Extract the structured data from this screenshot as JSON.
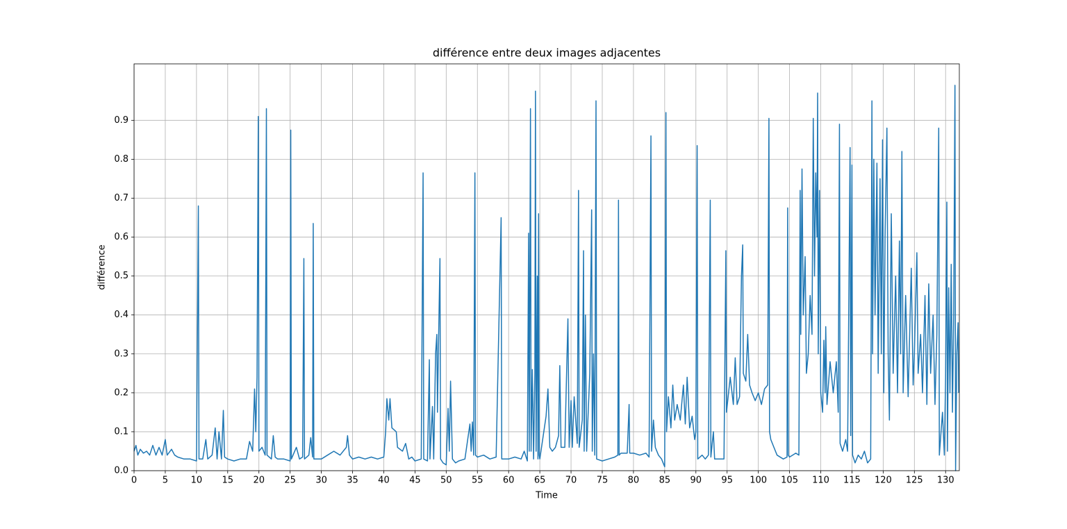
{
  "chart_data": {
    "type": "line",
    "title": "différence entre deux images adjacentes",
    "x_label": "Time",
    "y_label": "différence",
    "color": "#1f77b4",
    "grid": true,
    "xlim": [
      0,
      132.2
    ],
    "ylim": [
      0,
      1.045
    ],
    "xticks": [
      0,
      5,
      10,
      15,
      20,
      25,
      30,
      35,
      40,
      45,
      50,
      55,
      60,
      65,
      70,
      75,
      80,
      85,
      90,
      95,
      100,
      105,
      110,
      115,
      120,
      125,
      130
    ],
    "yticks": [
      {
        "value": 0,
        "label": "0.0"
      },
      0.1,
      0.2,
      0.3,
      0.4,
      0.5,
      0.6,
      0.7,
      0.8,
      0.9
    ],
    "x": [
      0,
      0.3,
      0.6,
      1,
      1.5,
      2,
      2.5,
      3,
      3.5,
      4,
      4.5,
      5,
      5.3,
      6,
      6.5,
      7,
      8,
      9,
      10,
      10.3,
      10.4,
      11,
      11.5,
      11.8,
      12.5,
      13,
      13.3,
      13.6,
      14,
      14.3,
      14.5,
      15,
      16,
      17,
      18,
      18.5,
      19,
      19.3,
      19.5,
      19.7,
      19.9,
      20,
      20.5,
      21,
      21.2,
      21.3,
      22,
      22.3,
      22.6,
      23,
      24,
      25,
      25.1,
      25.2,
      26,
      26.5,
      27,
      27.2,
      27.3,
      28,
      28.3,
      28.6,
      28.7,
      28.8,
      29.5,
      30,
      31,
      32,
      33,
      34,
      34.2,
      34.5,
      35,
      36,
      37,
      38,
      39,
      40,
      40.3,
      40.5,
      40.8,
      41,
      41.3,
      42,
      42.2,
      43,
      43.5,
      44,
      44.5,
      45,
      46,
      46.3,
      46.4,
      47,
      47.3,
      47.4,
      47.8,
      48,
      48.3,
      48.5,
      48.6,
      48.8,
      49,
      49.1,
      49.5,
      50,
      50.3,
      50.5,
      50.7,
      51,
      51.5,
      52,
      53,
      53.8,
      54,
      54.2,
      54.4,
      54.6,
      54.7,
      55,
      56,
      57,
      58,
      58.8,
      58.9,
      59.5,
      60,
      61,
      62,
      62.5,
      63,
      63.2,
      63.3,
      63.5,
      63.6,
      63.8,
      64,
      64.2,
      64.3,
      64.4,
      64.6,
      64.7,
      64.8,
      64.9,
      65,
      66,
      66.3,
      66.6,
      67,
      67.5,
      68,
      68.2,
      68.4,
      69,
      69.5,
      69.7,
      70,
      70.2,
      70.5,
      71,
      71.2,
      71.3,
      71.8,
      72,
      72.1,
      72.3,
      72.5,
      73,
      73.3,
      73.4,
      73.6,
      73.8,
      74,
      74.1,
      75,
      76,
      77,
      77.5,
      77.6,
      77.7,
      78,
      79,
      79.3,
      79.4,
      80,
      81,
      82,
      82.5,
      82.8,
      82.9,
      83.2,
      83.5,
      84,
      84.5,
      85,
      85.2,
      85.3,
      85.6,
      86,
      86.3,
      86.6,
      87,
      87.5,
      88,
      88.3,
      88.6,
      89,
      89.4,
      89.8,
      90,
      90.2,
      90.3,
      91,
      91.5,
      92,
      92.3,
      92.4,
      92.8,
      93,
      94,
      94.5,
      94.8,
      94.9,
      95.5,
      96,
      96.3,
      96.6,
      97,
      97.3,
      97.5,
      97.6,
      98,
      98.3,
      98.6,
      99,
      99.5,
      100,
      100.5,
      101,
      101.5,
      101.7,
      101.8,
      102,
      102.5,
      103,
      104,
      104.6,
      104.7,
      104.8,
      105,
      106,
      106.5,
      106.7,
      106.8,
      107,
      107.2,
      107.5,
      107.7,
      108,
      108.3,
      108.6,
      108.8,
      109,
      109.2,
      109.4,
      109.5,
      109.6,
      109.8,
      110,
      110.3,
      110.5,
      110.7,
      110.8,
      111,
      111.5,
      112,
      112.5,
      112.8,
      113,
      113.1,
      113.5,
      114,
      114.3,
      114.7,
      114.8,
      115,
      115.1,
      115.5,
      116,
      116.5,
      117,
      117.5,
      118,
      118.2,
      118.3,
      118.5,
      118.7,
      119,
      119.2,
      119.5,
      119.7,
      119.9,
      120.1,
      120.3,
      120.6,
      120.8,
      121,
      121.3,
      121.6,
      122,
      122.3,
      122.6,
      122.8,
      123,
      123.2,
      123.6,
      124,
      124.5,
      124.8,
      125,
      125.4,
      125.6,
      126,
      126.3,
      126.7,
      127,
      127.3,
      127.6,
      128,
      128.3,
      128.6,
      128.9,
      129,
      129.5,
      129.8,
      130,
      130.2,
      130.3,
      130.5,
      130.7,
      130.9,
      131.1,
      131.3,
      131.5,
      131.6,
      131.8,
      132,
      132.1
    ],
    "values": [
      0.05,
      0.065,
      0.04,
      0.055,
      0.045,
      0.05,
      0.04,
      0.065,
      0.04,
      0.06,
      0.04,
      0.08,
      0.04,
      0.055,
      0.04,
      0.035,
      0.03,
      0.03,
      0.025,
      0.68,
      0.03,
      0.03,
      0.08,
      0.03,
      0.04,
      0.11,
      0.03,
      0.1,
      0.03,
      0.155,
      0.035,
      0.03,
      0.025,
      0.03,
      0.03,
      0.075,
      0.05,
      0.21,
      0.1,
      0.24,
      0.91,
      0.05,
      0.06,
      0.04,
      0.93,
      0.04,
      0.03,
      0.09,
      0.035,
      0.03,
      0.03,
      0.025,
      0.875,
      0.03,
      0.06,
      0.03,
      0.035,
      0.545,
      0.03,
      0.04,
      0.085,
      0.035,
      0.635,
      0.03,
      0.03,
      0.03,
      0.04,
      0.05,
      0.04,
      0.06,
      0.09,
      0.04,
      0.03,
      0.035,
      0.03,
      0.035,
      0.03,
      0.035,
      0.1,
      0.185,
      0.13,
      0.185,
      0.11,
      0.1,
      0.06,
      0.05,
      0.07,
      0.03,
      0.035,
      0.025,
      0.03,
      0.765,
      0.03,
      0.025,
      0.285,
      0.03,
      0.165,
      0.03,
      0.3,
      0.35,
      0.15,
      0.355,
      0.545,
      0.03,
      0.02,
      0.015,
      0.16,
      0.05,
      0.23,
      0.03,
      0.02,
      0.025,
      0.03,
      0.12,
      0.05,
      0.125,
      0.04,
      0.765,
      0.04,
      0.035,
      0.04,
      0.03,
      0.035,
      0.65,
      0.03,
      0.03,
      0.03,
      0.035,
      0.03,
      0.05,
      0.025,
      0.61,
      0.05,
      0.93,
      0.05,
      0.26,
      0.03,
      0.25,
      0.975,
      0.05,
      0.5,
      0.03,
      0.66,
      0.04,
      0.03,
      0.14,
      0.21,
      0.06,
      0.05,
      0.06,
      0.09,
      0.27,
      0.06,
      0.06,
      0.39,
      0.06,
      0.18,
      0.06,
      0.19,
      0.07,
      0.72,
      0.06,
      0.13,
      0.565,
      0.05,
      0.4,
      0.05,
      0.25,
      0.67,
      0.05,
      0.3,
      0.04,
      0.95,
      0.03,
      0.025,
      0.03,
      0.035,
      0.04,
      0.695,
      0.04,
      0.045,
      0.045,
      0.17,
      0.045,
      0.045,
      0.04,
      0.045,
      0.035,
      0.86,
      0.05,
      0.13,
      0.06,
      0.04,
      0.03,
      0.01,
      0.92,
      0.1,
      0.19,
      0.11,
      0.22,
      0.13,
      0.17,
      0.13,
      0.22,
      0.12,
      0.24,
      0.11,
      0.14,
      0.08,
      0.1,
      0.835,
      0.03,
      0.04,
      0.03,
      0.04,
      0.695,
      0.035,
      0.1,
      0.03,
      0.03,
      0.03,
      0.565,
      0.15,
      0.24,
      0.17,
      0.29,
      0.17,
      0.19,
      0.5,
      0.58,
      0.25,
      0.23,
      0.35,
      0.22,
      0.2,
      0.18,
      0.2,
      0.17,
      0.21,
      0.22,
      0.905,
      0.1,
      0.08,
      0.06,
      0.04,
      0.03,
      0.035,
      0.675,
      0.04,
      0.035,
      0.045,
      0.04,
      0.72,
      0.35,
      0.775,
      0.4,
      0.55,
      0.25,
      0.3,
      0.45,
      0.35,
      0.905,
      0.5,
      0.765,
      0.6,
      0.97,
      0.3,
      0.72,
      0.2,
      0.15,
      0.335,
      0.2,
      0.37,
      0.17,
      0.28,
      0.2,
      0.28,
      0.15,
      0.89,
      0.07,
      0.05,
      0.08,
      0.05,
      0.83,
      0.09,
      0.785,
      0.04,
      0.02,
      0.04,
      0.03,
      0.05,
      0.02,
      0.03,
      0.95,
      0.3,
      0.8,
      0.4,
      0.79,
      0.25,
      0.75,
      0.3,
      0.85,
      0.2,
      0.6,
      0.88,
      0.3,
      0.13,
      0.66,
      0.25,
      0.5,
      0.2,
      0.59,
      0.3,
      0.82,
      0.2,
      0.45,
      0.19,
      0.52,
      0.22,
      0.3,
      0.56,
      0.25,
      0.35,
      0.2,
      0.45,
      0.17,
      0.48,
      0.25,
      0.4,
      0.17,
      0.35,
      0.88,
      0.04,
      0.15,
      0.04,
      0.24,
      0.69,
      0.05,
      0.47,
      0.2,
      0.53,
      0.15,
      0.4,
      0.99,
      0,
      0.3,
      0.38,
      0.2
    ]
  }
}
